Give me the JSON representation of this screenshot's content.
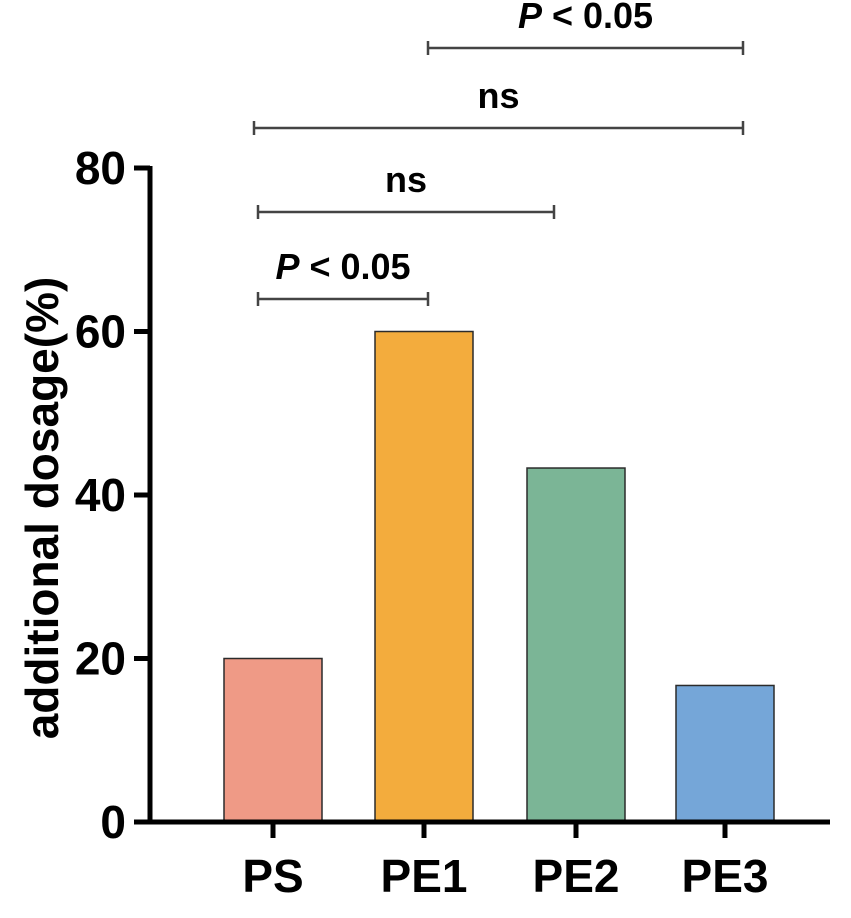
{
  "chart_data": {
    "type": "bar",
    "categories": [
      "PS",
      "PE1",
      "PE2",
      "PE3"
    ],
    "values": [
      20,
      60,
      43.3,
      16.7
    ],
    "colors": [
      "#ef9a86",
      "#f3ac3d",
      "#7bb596",
      "#75a6d8"
    ],
    "ylabel": "additional dosage(%)",
    "ylim": [
      0,
      80
    ],
    "yticks": [
      0,
      20,
      40,
      60,
      80
    ],
    "comparisons": [
      {
        "from": 0,
        "to": 1,
        "p_symbol": "P",
        "text": " < 0.05",
        "level": 0
      },
      {
        "from": 0,
        "to": 2,
        "p_symbol": "",
        "text": "ns",
        "level": 1
      },
      {
        "from": 0,
        "to": 3,
        "p_symbol": "",
        "text": "ns",
        "level": 2
      },
      {
        "from": 1,
        "to": 3,
        "p_symbol": "P",
        "text": " < 0.05",
        "level": 3
      }
    ]
  }
}
